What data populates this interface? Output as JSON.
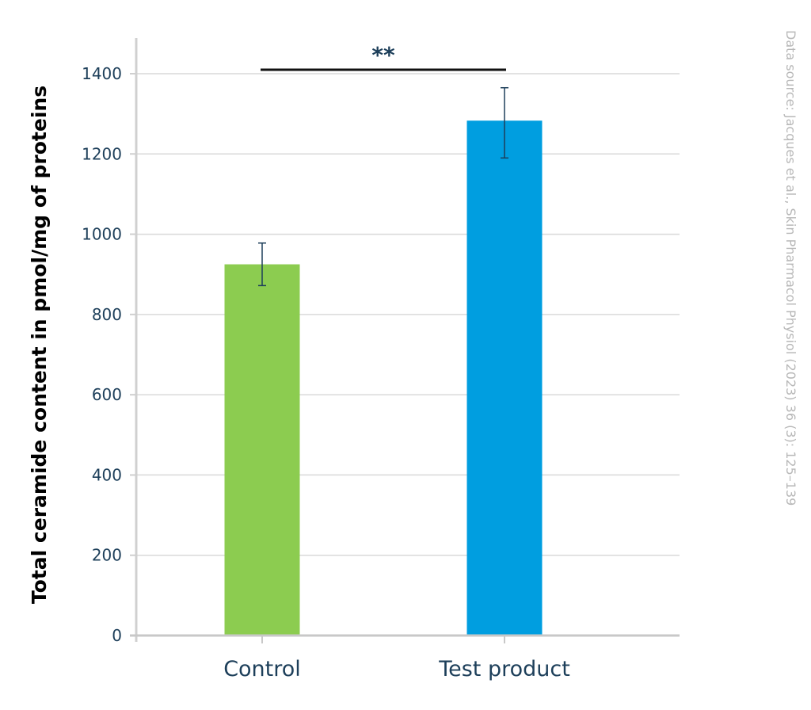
{
  "chart_data": {
    "type": "bar",
    "categories": [
      "Control",
      "Test product"
    ],
    "values": [
      925,
      1283
    ],
    "errors": [
      [
        872,
        978
      ],
      [
        1190,
        1365
      ]
    ],
    "colors": [
      "#8ccc50",
      "#009ee0"
    ],
    "xlabel": "",
    "ylabel": "Total ceramide content in pmol/mg of proteins",
    "ylim": [
      0,
      1400
    ],
    "yticks": [
      0,
      200,
      400,
      600,
      800,
      1000,
      1200,
      1400
    ],
    "grid": true,
    "significance": {
      "from": "Control",
      "to": "Test product",
      "label": "**"
    },
    "source": "Data source: Jacques et al., Skin Pharmacol Physiol (2023) 36 (3): 125–139"
  }
}
